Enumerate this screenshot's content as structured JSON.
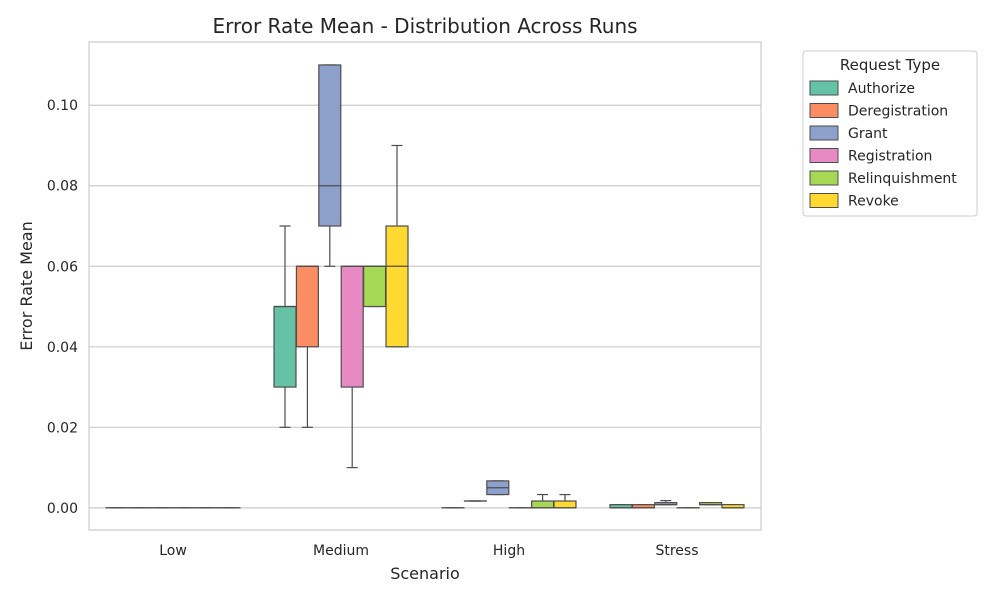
{
  "chart_data": {
    "type": "box",
    "title": "Error Rate Mean - Distribution Across Runs",
    "xlabel": "Scenario",
    "ylabel": "Error Rate Mean",
    "categories": [
      "Low",
      "Medium",
      "High",
      "Stress"
    ],
    "ylim": [
      -0.0055,
      0.1157
    ],
    "yticks": [
      "0.00",
      "0.02",
      "0.04",
      "0.06",
      "0.08",
      "0.10"
    ],
    "grid": "horizontal",
    "legend": {
      "title": "Request Type",
      "placement": "outside-top-right"
    },
    "series": [
      {
        "name": "Authorize",
        "color": "#66c2a5",
        "boxes": [
          [
            0,
            0,
            0,
            0,
            0
          ],
          [
            0.02,
            0.03,
            0.05,
            0.05,
            0.07
          ],
          [
            0,
            0,
            0,
            0,
            0
          ],
          [
            0,
            0,
            0,
            0.0008,
            0.0008
          ]
        ]
      },
      {
        "name": "Deregistration",
        "color": "#fc8d62",
        "boxes": [
          [
            0,
            0,
            0,
            0,
            0
          ],
          [
            0.02,
            0.04,
            0.06,
            0.06,
            0.06
          ],
          [
            0.0017,
            0.0017,
            0.0017,
            0.0017,
            0.0017
          ],
          [
            0,
            0,
            0,
            0.0008,
            0.0008
          ]
        ]
      },
      {
        "name": "Grant",
        "color": "#8da0cb",
        "boxes": [
          [
            0,
            0,
            0,
            0,
            0
          ],
          [
            0.06,
            0.07,
            0.08,
            0.11,
            0.11
          ],
          [
            0.0033,
            0.0033,
            0.005,
            0.0067,
            0.0067
          ],
          [
            0.0008,
            0.0008,
            0.0008,
            0.0013,
            0.0018
          ]
        ]
      },
      {
        "name": "Registration",
        "color": "#e78ac3",
        "boxes": [
          [
            0,
            0,
            0,
            0,
            0
          ],
          [
            0.01,
            0.03,
            0.06,
            0.06,
            0.06
          ],
          [
            0,
            0,
            0,
            0,
            0
          ],
          [
            0,
            0,
            0,
            0,
            0
          ]
        ]
      },
      {
        "name": "Relinquishment",
        "color": "#a6d854",
        "boxes": [
          [
            0,
            0,
            0,
            0,
            0
          ],
          [
            0.05,
            0.05,
            0.06,
            0.06,
            0.06
          ],
          [
            0,
            0,
            0,
            0.0017,
            0.0033
          ],
          [
            0.0008,
            0.0008,
            0.0008,
            0.0013,
            0.0013
          ]
        ]
      },
      {
        "name": "Revoke",
        "color": "#ffd92f",
        "boxes": [
          [
            0,
            0,
            0,
            0,
            0
          ],
          [
            0.04,
            0.04,
            0.06,
            0.07,
            0.09
          ],
          [
            0,
            0,
            0,
            0.0017,
            0.0033
          ],
          [
            0,
            0,
            0,
            0.0008,
            0.0008
          ]
        ]
      }
    ]
  }
}
